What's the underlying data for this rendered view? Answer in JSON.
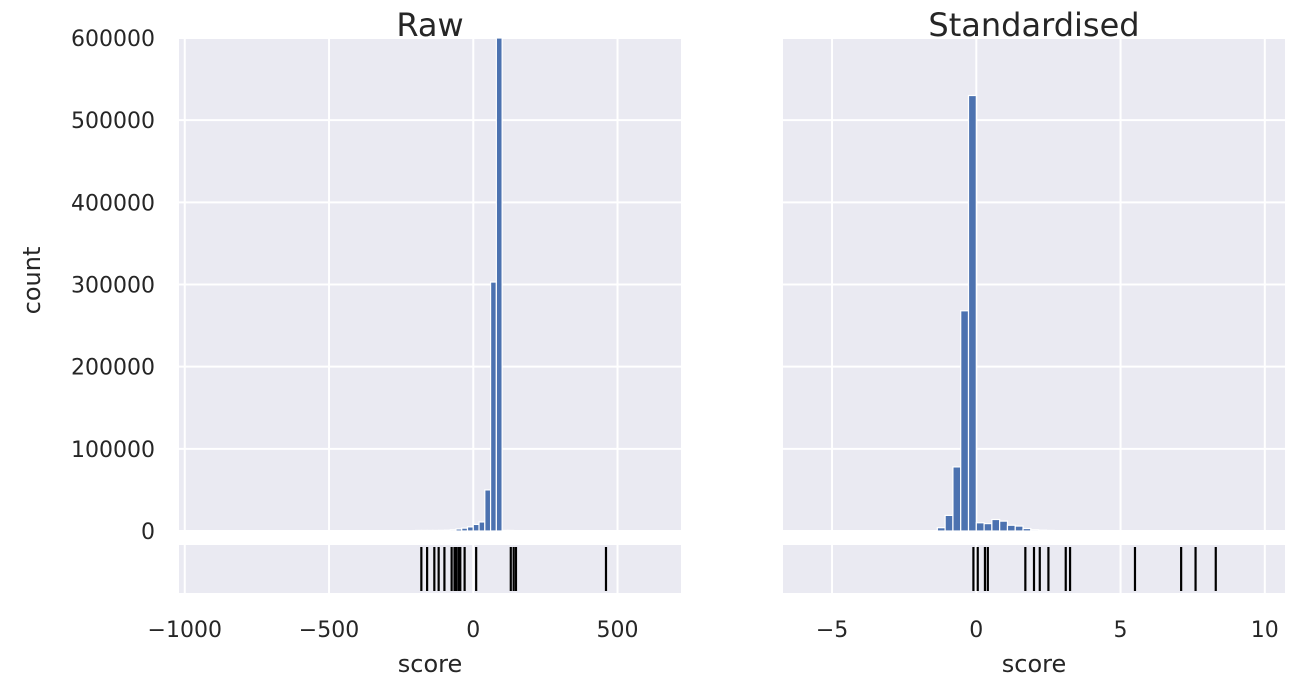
{
  "chart_data": [
    {
      "type": "histogram",
      "title": "Raw",
      "xlabel": "score",
      "ylabel": "count",
      "xlim": [
        -1020,
        720
      ],
      "ylim": [
        0,
        600000
      ],
      "xticks": [
        -1000,
        -500,
        0,
        500
      ],
      "xtick_labels": [
        "−1000",
        "−500",
        "0",
        "500"
      ],
      "yticks": [
        0,
        100000,
        200000,
        300000,
        400000,
        500000,
        600000
      ],
      "ytick_labels": [
        "0",
        "100000",
        "200000",
        "300000",
        "400000",
        "500000",
        "600000"
      ],
      "grid": true,
      "bin_width": 20,
      "bins": [
        {
          "x0": -200,
          "x1": -180,
          "count": 300
        },
        {
          "x0": -180,
          "x1": -160,
          "count": 400
        },
        {
          "x0": -160,
          "x1": -140,
          "count": 500
        },
        {
          "x0": -140,
          "x1": -120,
          "count": 600
        },
        {
          "x0": -120,
          "x1": -100,
          "count": 800
        },
        {
          "x0": -100,
          "x1": -80,
          "count": 1000
        },
        {
          "x0": -80,
          "x1": -60,
          "count": 1500
        },
        {
          "x0": -60,
          "x1": -40,
          "count": 2500
        },
        {
          "x0": -40,
          "x1": -20,
          "count": 3500
        },
        {
          "x0": -20,
          "x1": 0,
          "count": 5000
        },
        {
          "x0": 0,
          "x1": 20,
          "count": 8000
        },
        {
          "x0": 20,
          "x1": 40,
          "count": 11000
        },
        {
          "x0": 40,
          "x1": 60,
          "count": 50000
        },
        {
          "x0": 60,
          "x1": 80,
          "count": 303000
        },
        {
          "x0": 80,
          "x1": 100,
          "count": 600000
        },
        {
          "x0": 100,
          "x1": 120,
          "count": 500
        },
        {
          "x0": 120,
          "x1": 140,
          "count": 200
        }
      ],
      "rug": [
        -180,
        -160,
        -135,
        -120,
        -100,
        -75,
        -65,
        -58,
        -50,
        -45,
        -30,
        10,
        130,
        140,
        148,
        460
      ]
    },
    {
      "type": "histogram",
      "title": "Standardised",
      "xlabel": "score",
      "xlim": [
        -6.7,
        10.7
      ],
      "ylim": [
        0,
        600000
      ],
      "xticks": [
        -5,
        0,
        5,
        10
      ],
      "xtick_labels": [
        "−5",
        "0",
        "5",
        "10"
      ],
      "yticks": [
        0,
        100000,
        200000,
        300000,
        400000,
        500000,
        600000
      ],
      "grid": true,
      "bin_width": 0.27,
      "bins": [
        {
          "x0": -1.35,
          "x1": -1.08,
          "count": 4000
        },
        {
          "x0": -1.08,
          "x1": -0.81,
          "count": 19000
        },
        {
          "x0": -0.81,
          "x1": -0.54,
          "count": 78000
        },
        {
          "x0": -0.54,
          "x1": -0.27,
          "count": 268000
        },
        {
          "x0": -0.27,
          "x1": 0.0,
          "count": 530000
        },
        {
          "x0": 0.0,
          "x1": 0.27,
          "count": 10000
        },
        {
          "x0": 0.27,
          "x1": 0.54,
          "count": 9000
        },
        {
          "x0": 0.54,
          "x1": 0.81,
          "count": 14000
        },
        {
          "x0": 0.81,
          "x1": 1.08,
          "count": 12000
        },
        {
          "x0": 1.08,
          "x1": 1.35,
          "count": 7000
        },
        {
          "x0": 1.35,
          "x1": 1.62,
          "count": 6000
        },
        {
          "x0": 1.62,
          "x1": 1.89,
          "count": 3000
        },
        {
          "x0": 1.89,
          "x1": 2.16,
          "count": 1500
        },
        {
          "x0": 2.16,
          "x1": 2.43,
          "count": 1000
        },
        {
          "x0": 2.43,
          "x1": 2.7,
          "count": 700
        }
      ],
      "rug": [
        -0.1,
        0.05,
        0.3,
        0.4,
        1.7,
        2.0,
        2.2,
        2.5,
        3.1,
        3.25,
        5.5,
        7.1,
        7.6,
        8.3
      ]
    }
  ]
}
